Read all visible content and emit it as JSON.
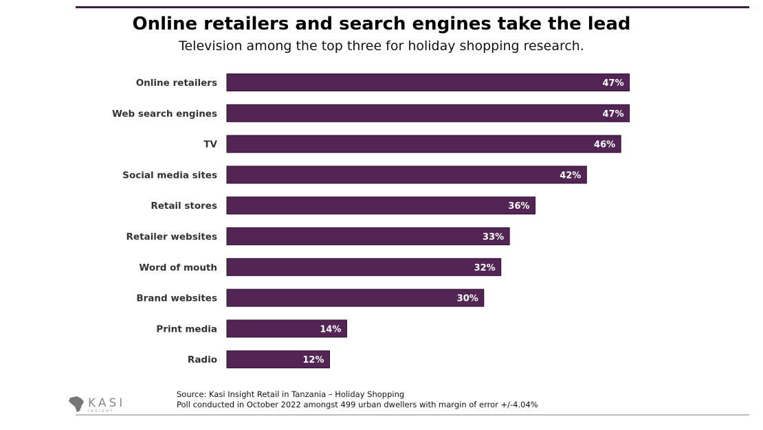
{
  "chart_data": {
    "type": "bar",
    "orientation": "horizontal",
    "title": "Online retailers and search engines take the lead",
    "subtitle": "Television among the top three for holiday shopping research.",
    "categories": [
      "Online retailers",
      "Web search engines",
      "TV",
      "Social media sites",
      "Retail stores",
      "Retailer websites",
      "Word of mouth",
      "Brand websites",
      "Print media",
      "Radio"
    ],
    "values": [
      47,
      47,
      46,
      42,
      36,
      33,
      32,
      30,
      14,
      12
    ],
    "data_labels": [
      "47%",
      "47%",
      "46%",
      "42%",
      "36%",
      "33%",
      "32%",
      "30%",
      "14%",
      "12%"
    ],
    "xlim": [
      0,
      50
    ],
    "grid": false,
    "bar_color": "#532554",
    "label_color": "#ffffff"
  },
  "footer": {
    "source": "Source: Kasi Insight Retail in Tanzania – Holiday Shopping",
    "note": "Poll conducted in October 2022 amongst 499 urban dwellers with margin of error +/-4.04%",
    "logo_text": "KASI",
    "logo_sub": "INSIGHT"
  }
}
